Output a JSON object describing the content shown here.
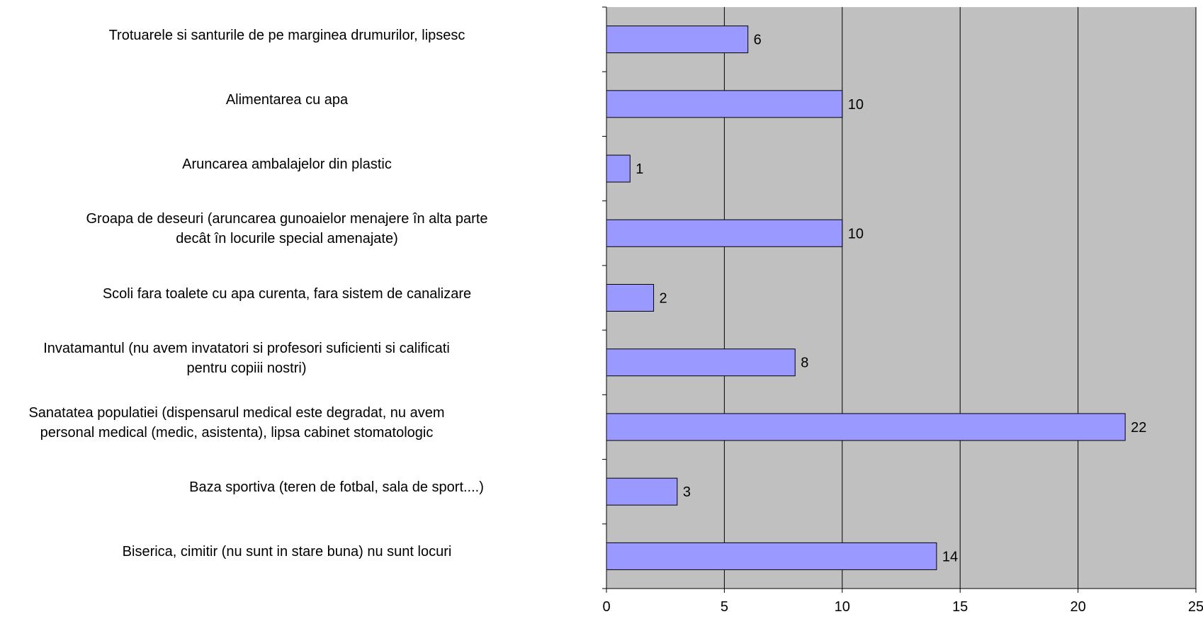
{
  "chart_data": {
    "type": "bar",
    "orientation": "horizontal",
    "categories": [
      "Trotuarele si santurile de pe marginea drumurilor, lipsesc",
      "Alimentarea cu apa",
      "Aruncarea ambalajelor din plastic",
      "Groapa de deseuri (aruncarea gunoaielor menajere în alta parte decât în locurile special amenajate)",
      "Scoli fara toalete cu apa curenta, fara sistem de canalizare",
      "Invatamantul (nu avem invatatori si profesori suficienti si calificati pentru copiii nostri)",
      "Sanatatea populatiei (dispensarul medical este degradat, nu avem personal medical (medic, asistenta), lipsa cabinet stomatologic",
      "Baza sportiva (teren de fotbal, sala de sport....)",
      "Biserica, cimitir (nu sunt in stare buna) nu sunt locuri"
    ],
    "category_lines": [
      [
        "Trotuarele si santurile de pe marginea drumurilor, lipsesc"
      ],
      [
        "Alimentarea cu apa"
      ],
      [
        "Aruncarea ambalajelor din plastic"
      ],
      [
        "Groapa de deseuri (aruncarea gunoaielor menajere în alta parte",
        "decât în locurile special amenajate)"
      ],
      [
        "Scoli fara toalete cu apa curenta, fara sistem de canalizare"
      ],
      [
        "Invatamantul (nu avem invatatori si profesori suficienti si calificati",
        "pentru copiii nostri)"
      ],
      [
        "Sanatatea populatiei (dispensarul medical este degradat, nu avem",
        "personal medical (medic, asistenta), lipsa cabinet stomatologic"
      ],
      [
        "Baza sportiva (teren de fotbal, sala de sport....)"
      ],
      [
        "Biserica, cimitir (nu sunt in stare buna) nu sunt locuri"
      ]
    ],
    "values": [
      6,
      10,
      1,
      10,
      2,
      8,
      22,
      3,
      14
    ],
    "xlim": [
      0,
      25
    ],
    "x_ticks": [
      0,
      5,
      10,
      15,
      20,
      25
    ],
    "grid": true,
    "legend": "none",
    "title": "",
    "xlabel": "",
    "ylabel": "",
    "colors": {
      "bar_fill": "#9999ff",
      "bar_stroke": "#000000",
      "plot_background": "#c0c0c0",
      "gridline": "#000000",
      "text": "#000000"
    }
  }
}
